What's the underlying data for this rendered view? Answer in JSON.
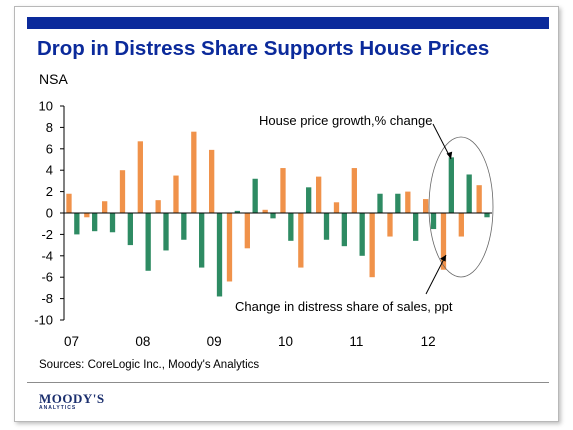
{
  "colors": {
    "brand": "#0b2a9b",
    "title": "#0b2a9b",
    "house_price": "#f0924a",
    "distress": "#2e8b63",
    "axis": "#000000",
    "logo": "#1b2f6e"
  },
  "header": {
    "title": "Drop in Distress Share Supports House Prices",
    "subtitle": "NSA"
  },
  "footer": {
    "source": "Sources: CoreLogic Inc., Moody's Analytics",
    "logo_main": "MOODY'S",
    "logo_sub": "ANALYTICS"
  },
  "chart_data": {
    "type": "bar",
    "title": "",
    "xlabel": "",
    "ylabel": "",
    "ylim": [
      -10,
      10
    ],
    "yticks": [
      10,
      8,
      6,
      4,
      2,
      0,
      -2,
      -4,
      -6,
      -8,
      -10
    ],
    "grid": false,
    "legend": "none",
    "categories": [
      "07 Q1",
      "07 Q2",
      "07 Q3",
      "07 Q4",
      "08 Q1",
      "08 Q2",
      "08 Q3",
      "08 Q4",
      "09 Q1",
      "09 Q2",
      "09 Q3",
      "09 Q4",
      "10 Q1",
      "10 Q2",
      "10 Q3",
      "10 Q4",
      "11 Q1",
      "11 Q2",
      "11 Q3",
      "11 Q4",
      "12 Q1",
      "12 Q2",
      "12 Q3",
      "12 Q4"
    ],
    "x_tick_labels": [
      "07",
      "08",
      "09",
      "10",
      "11",
      "12"
    ],
    "series": [
      {
        "name": "House price growth,% change",
        "color": "#f0924a",
        "values": [
          1.8,
          -0.4,
          1.1,
          4.0,
          6.7,
          1.2,
          3.5,
          7.6,
          5.9,
          -6.4,
          -3.3,
          0.3,
          4.2,
          -5.1,
          3.4,
          1.0,
          4.2,
          -6.0,
          -2.2,
          2.0,
          1.3,
          -5.3,
          -2.2,
          2.6
        ]
      },
      {
        "name": "Change in distress share of sales, ppt",
        "color": "#2e8b63",
        "values": [
          -2.0,
          -1.7,
          -1.8,
          -3.0,
          -5.4,
          -3.5,
          -2.5,
          -5.1,
          -7.8,
          0.2,
          3.2,
          -0.5,
          -2.6,
          2.4,
          -2.5,
          -3.1,
          -4.0,
          1.8,
          1.8,
          -2.6,
          -1.5,
          5.2,
          3.6,
          -0.4
        ]
      }
    ],
    "annotations": [
      {
        "text": "House price growth,% change"
      },
      {
        "text": "Change in distress share of sales, ppt"
      }
    ]
  }
}
